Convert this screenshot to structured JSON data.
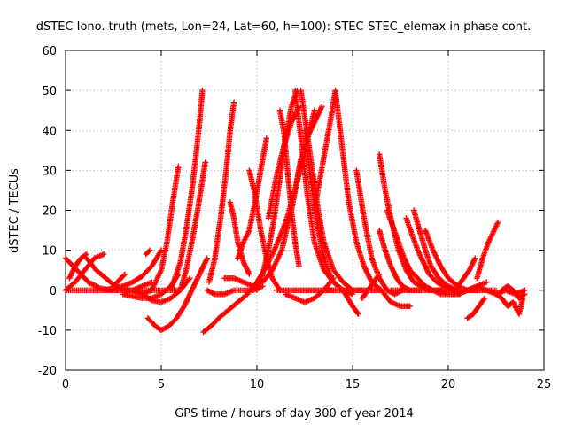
{
  "chart_data": {
    "type": "scatter",
    "title": "dSTEC Iono. truth (mets, Lon=24, Lat=60, h=100): STEC-STEC_elemax in phase cont.",
    "xlabel": "GPS time / hours of day 300 of year 2014",
    "ylabel": "dSTEC  / TECUs",
    "xlim": [
      0,
      25
    ],
    "ylim": [
      -20,
      60
    ],
    "x_ticks": [
      0,
      5,
      10,
      15,
      20,
      25
    ],
    "y_ticks": [
      -20,
      -10,
      0,
      10,
      20,
      30,
      40,
      50,
      60
    ],
    "grid": true,
    "marker": "+",
    "color": "#ff0000",
    "series": [
      {
        "x": [
          0.0,
          0.6,
          1.2,
          1.8,
          2.4,
          3.0
        ],
        "y": [
          8,
          5,
          2,
          0.5,
          0,
          0
        ]
      },
      {
        "x": [
          0.0,
          0.5,
          1.0,
          1.5,
          2.0
        ],
        "y": [
          0,
          2,
          5,
          8,
          9
        ]
      },
      {
        "x": [
          0.0,
          1.0,
          2.0,
          3.0,
          4.0,
          5.0,
          6.0
        ],
        "y": [
          0,
          0,
          0,
          0,
          0,
          0,
          0
        ]
      },
      {
        "x": [
          0.2,
          0.5,
          0.8,
          1.1
        ],
        "y": [
          3,
          6,
          8,
          9
        ]
      },
      {
        "x": [
          1.1,
          1.6,
          2.1,
          2.6,
          3.0
        ],
        "y": [
          8,
          5,
          3,
          1,
          0
        ]
      },
      {
        "x": [
          2.0,
          2.5,
          3.0,
          3.5,
          4.0,
          4.5,
          5.0
        ],
        "y": [
          0,
          0.5,
          1,
          2,
          3.5,
          6,
          10
        ]
      },
      {
        "x": [
          2.5,
          2.8,
          3.1
        ],
        "y": [
          1,
          2.5,
          4
        ]
      },
      {
        "x": [
          3.0,
          3.5,
          4.0,
          4.5
        ],
        "y": [
          0,
          0,
          1,
          2
        ]
      },
      {
        "x": [
          4.2,
          4.4
        ],
        "y": [
          9,
          10
        ]
      },
      {
        "x": [
          3.0,
          3.5,
          4.0,
          4.5,
          5.0,
          5.5,
          5.9
        ],
        "y": [
          -1,
          -1.5,
          -2,
          -2,
          -1,
          1,
          4
        ]
      },
      {
        "x": [
          4.0,
          4.5,
          5.0,
          5.3,
          5.6,
          5.9
        ],
        "y": [
          -1,
          0,
          5,
          12,
          22,
          31
        ]
      },
      {
        "x": [
          3.5,
          4.0,
          4.5,
          5.0,
          5.5,
          6.0,
          6.5
        ],
        "y": [
          0,
          -1,
          -2.5,
          -3,
          -2,
          0,
          3
        ]
      },
      {
        "x": [
          4.3,
          4.7,
          5.0,
          5.4,
          5.8,
          6.2,
          6.6,
          7.0,
          7.4
        ],
        "y": [
          -7,
          -9,
          -10,
          -9,
          -7,
          -4,
          0,
          4,
          8
        ]
      },
      {
        "x": [
          5.5,
          6.0,
          6.3,
          6.6,
          6.8,
          7.0,
          7.15
        ],
        "y": [
          0,
          7,
          15,
          25,
          33,
          42,
          50
        ]
      },
      {
        "x": [
          6.0,
          6.3,
          6.6,
          6.9,
          7.1,
          7.3
        ],
        "y": [
          0,
          5,
          12,
          20,
          26,
          32
        ]
      },
      {
        "x": [
          7.2,
          7.6,
          8.0,
          8.5,
          9.0,
          9.5,
          10.0,
          10.5,
          11.0,
          11.5,
          12.0,
          12.5,
          13.0
        ],
        "y": [
          -10.5,
          -9,
          -7,
          -5,
          -3,
          -1,
          2,
          6,
          11,
          17,
          25,
          35,
          45
        ]
      },
      {
        "x": [
          7.4,
          7.8,
          8.3,
          8.8,
          9.3,
          9.8,
          10.3
        ],
        "y": [
          0,
          -1,
          -1,
          0,
          0,
          0,
          1
        ]
      },
      {
        "x": [
          7.5,
          7.8,
          8.1,
          8.4,
          8.6,
          8.8
        ],
        "y": [
          2,
          8,
          18,
          30,
          40,
          47
        ]
      },
      {
        "x": [
          8.3,
          8.8,
          9.3,
          9.8,
          10.3,
          10.8,
          11.3,
          11.8,
          12.3
        ],
        "y": [
          3,
          3,
          2,
          1,
          2,
          5,
          10,
          20,
          33
        ]
      },
      {
        "x": [
          8.6,
          8.8,
          9.0,
          9.3,
          9.6
        ],
        "y": [
          22,
          18,
          12,
          7,
          4
        ]
      },
      {
        "x": [
          9.6,
          9.9,
          10.2,
          10.5,
          10.8,
          11.2
        ],
        "y": [
          30,
          24,
          15,
          8,
          3,
          0
        ]
      },
      {
        "x": [
          9.0,
          9.3,
          9.6,
          9.9,
          10.2,
          10.5
        ],
        "y": [
          8,
          12,
          15,
          22,
          30,
          38
        ]
      },
      {
        "x": [
          10.0,
          10.3,
          10.6,
          10.9,
          11.2,
          11.5,
          11.8,
          12.1
        ],
        "y": [
          0,
          4,
          10,
          18,
          28,
          38,
          46,
          50
        ]
      },
      {
        "x": [
          10.6,
          11.0,
          11.4,
          11.8,
          12.2
        ],
        "y": [
          18,
          28,
          36,
          42,
          46
        ]
      },
      {
        "x": [
          11.2,
          11.4,
          11.6,
          11.8,
          12.0,
          12.2
        ],
        "y": [
          45,
          40,
          30,
          20,
          12,
          6
        ]
      },
      {
        "x": [
          12.0,
          12.3,
          12.6,
          13.0,
          13.5,
          14.0,
          14.5,
          15.0
        ],
        "y": [
          50,
          38,
          25,
          12,
          5,
          2,
          0,
          -1
        ]
      },
      {
        "x": [
          12.3,
          12.6,
          12.9,
          13.2,
          13.5,
          14.0,
          14.5,
          15.0,
          15.5
        ],
        "y": [
          50,
          40,
          30,
          20,
          12,
          5,
          2,
          0,
          0
        ]
      },
      {
        "x": [
          12.5,
          12.8,
          13.1,
          13.4,
          13.7,
          14.0,
          14.5,
          15.0,
          15.3
        ],
        "y": [
          40,
          28,
          18,
          10,
          5,
          2,
          0,
          -4,
          -6
        ]
      },
      {
        "x": [
          11.5,
          12.0,
          12.5,
          13.0,
          13.5,
          14.0
        ],
        "y": [
          -1,
          -2,
          -3,
          -2,
          0,
          3
        ]
      },
      {
        "x": [
          11.0,
          11.5,
          12.0,
          12.5,
          13.0,
          13.5,
          14.0,
          14.5
        ],
        "y": [
          0,
          0,
          0,
          0,
          0,
          0,
          0,
          0
        ]
      },
      {
        "x": [
          11.8,
          12.2,
          12.6,
          13.0,
          13.4
        ],
        "y": [
          20,
          30,
          38,
          42,
          46
        ]
      },
      {
        "x": [
          13.0,
          13.3,
          13.6,
          13.9,
          14.1
        ],
        "y": [
          20,
          28,
          36,
          44,
          50
        ]
      },
      {
        "x": [
          14.1,
          14.4,
          14.8,
          15.2,
          15.6,
          16.0,
          16.5,
          17.0,
          17.5,
          18.0
        ],
        "y": [
          50,
          38,
          22,
          12,
          6,
          2,
          0,
          -3,
          -4,
          -4
        ]
      },
      {
        "x": [
          13.5,
          14.0,
          14.5,
          15.0,
          15.5,
          16.0,
          16.5
        ],
        "y": [
          0,
          0,
          0,
          0,
          0,
          0,
          0
        ]
      },
      {
        "x": [
          15.2,
          15.6,
          16.0,
          16.4,
          16.8,
          17.2,
          17.6
        ],
        "y": [
          30,
          18,
          8,
          3,
          0,
          -1,
          0
        ]
      },
      {
        "x": [
          15.5,
          15.8,
          16.1,
          16.4
        ],
        "y": [
          -2,
          0,
          2,
          4
        ]
      },
      {
        "x": [
          16.4,
          16.7,
          17.0,
          17.4,
          17.8,
          18.2,
          18.6,
          19.0,
          19.5,
          20.0
        ],
        "y": [
          34,
          25,
          18,
          10,
          5,
          2,
          1,
          0,
          0,
          0
        ]
      },
      {
        "x": [
          16.4,
          16.7,
          17.0,
          17.3,
          17.6,
          18.0,
          18.5,
          19.0
        ],
        "y": [
          15,
          10,
          6,
          3,
          1,
          0,
          0,
          0
        ]
      },
      {
        "x": [
          16.8,
          17.1,
          17.4,
          17.7,
          18.0,
          18.4,
          18.8,
          19.2,
          19.6,
          20.0,
          20.5,
          21.0
        ],
        "y": [
          20,
          16,
          12,
          8,
          5,
          3,
          1,
          0,
          -1,
          -1,
          -1,
          0
        ]
      },
      {
        "x": [
          17.0,
          17.5,
          18.0,
          18.5,
          19.0,
          19.5,
          20.0,
          20.5,
          21.0,
          21.5,
          22.0,
          22.5
        ],
        "y": [
          0,
          0,
          0,
          0,
          0,
          0,
          0,
          0,
          0,
          0,
          0,
          0
        ]
      },
      {
        "x": [
          17.8,
          18.1,
          18.4,
          18.7,
          19.0,
          19.4,
          19.8,
          20.2,
          20.6
        ],
        "y": [
          18,
          14,
          10,
          7,
          4,
          2,
          1,
          0,
          -1
        ]
      },
      {
        "x": [
          18.2,
          18.5,
          18.8,
          19.1,
          19.5,
          20.0,
          20.5
        ],
        "y": [
          20,
          15,
          10,
          6,
          3,
          1,
          0
        ]
      },
      {
        "x": [
          18.8,
          19.2,
          19.6,
          20.0,
          20.5,
          21.0,
          21.5
        ],
        "y": [
          15,
          10,
          6,
          3,
          1,
          0,
          0
        ]
      },
      {
        "x": [
          19.5,
          20.0,
          20.5,
          21.0,
          21.5,
          22.0
        ],
        "y": [
          0,
          -1,
          -1,
          0,
          1,
          2
        ]
      },
      {
        "x": [
          20.5,
          20.8,
          21.1,
          21.4
        ],
        "y": [
          1,
          3,
          5,
          8
        ]
      },
      {
        "x": [
          21.0,
          21.3,
          21.6,
          21.9
        ],
        "y": [
          -7,
          -6,
          -4,
          -2
        ]
      },
      {
        "x": [
          21.5,
          21.8,
          22.1,
          22.4,
          22.6
        ],
        "y": [
          3,
          8,
          12,
          15,
          17
        ]
      },
      {
        "x": [
          21.0,
          21.5,
          22.0,
          22.5,
          23.0,
          23.5,
          24.0
        ],
        "y": [
          0,
          1,
          0,
          -1,
          0,
          -1,
          0
        ]
      },
      {
        "x": [
          22.5,
          22.8,
          23.1,
          23.4,
          23.7,
          23.9
        ],
        "y": [
          -1,
          -2,
          -4,
          -3,
          -6,
          -2
        ]
      },
      {
        "x": [
          22.8,
          23.1,
          23.4,
          23.7,
          24.0
        ],
        "y": [
          0,
          1,
          0,
          -2,
          -1
        ]
      }
    ]
  }
}
